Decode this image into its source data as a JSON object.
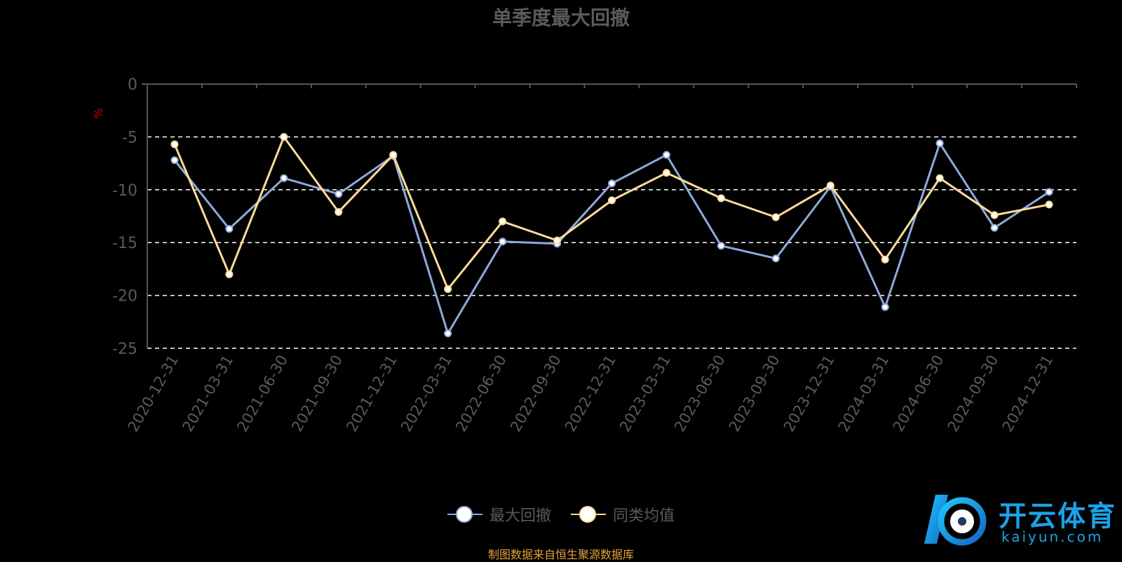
{
  "chart_data": {
    "type": "line",
    "title": "单季度最大回撤",
    "ylabel": "%",
    "ylim": [
      -25,
      0
    ],
    "yticks": [
      0,
      -5,
      -10,
      -15,
      -20,
      -25
    ],
    "categories": [
      "2020-12-31",
      "2021-03-31",
      "2021-06-30",
      "2021-09-30",
      "2021-12-31",
      "2022-03-31",
      "2022-06-30",
      "2022-09-30",
      "2022-12-31",
      "2023-03-31",
      "2023-06-30",
      "2023-09-30",
      "2023-12-31",
      "2024-03-31",
      "2024-06-30",
      "2024-09-30",
      "2024-12-31"
    ],
    "series": [
      {
        "name": "最大回撤",
        "color": "#8eaadb",
        "values": [
          -7.2,
          -13.7,
          -8.9,
          -10.4,
          -6.8,
          -23.6,
          -14.9,
          -15.1,
          -9.4,
          -6.7,
          -15.3,
          -16.5,
          -9.7,
          -21.1,
          -5.6,
          -13.6,
          -10.2
        ]
      },
      {
        "name": "同类均值",
        "color": "#ffdb99",
        "values": [
          -5.7,
          -18.0,
          -5.0,
          -12.1,
          -6.7,
          -19.4,
          -13.0,
          -14.8,
          -11.0,
          -8.4,
          -10.8,
          -12.6,
          -9.6,
          -16.6,
          -8.9,
          -12.4,
          -11.4
        ]
      }
    ],
    "grid": "dashed-horizontal",
    "legend_position": "bottom-center"
  },
  "footer": {
    "source": "制图数据来自恒生聚源数据库"
  },
  "logo": {
    "name": "开云体育",
    "url": "kaiyun.com"
  },
  "colors": {
    "axis": "#555555",
    "tick_label": "#5a5a5a",
    "ylabel": "#cc0000",
    "grid": "#ffffff"
  }
}
